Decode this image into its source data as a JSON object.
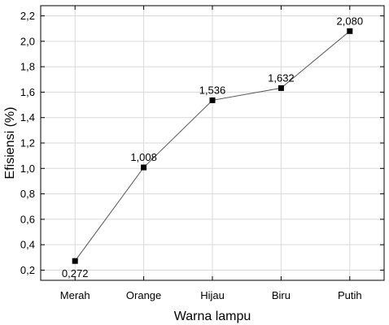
{
  "chart_data": {
    "type": "line",
    "categories": [
      "Merah",
      "Orange",
      "Hijau",
      "Biru",
      "Putih"
    ],
    "values": [
      0.272,
      1.008,
      1.536,
      1.632,
      2.08
    ],
    "data_labels": [
      "0,272",
      "1,008",
      "1,536",
      "1,632",
      "2,080"
    ],
    "xlabel": "Warna lampu",
    "ylabel": "Efisiensi (%)",
    "ylim": [
      0.12,
      2.28
    ],
    "yticks": [
      0.2,
      0.4,
      0.6,
      0.8,
      1.0,
      1.2,
      1.4,
      1.6,
      1.8,
      2.0,
      2.2
    ],
    "ytick_labels": [
      "0,2",
      "0,4",
      "0,6",
      "0,8",
      "1,0",
      "1,2",
      "1,4",
      "1,6",
      "1,8",
      "2,0",
      "2,2"
    ],
    "grid": true,
    "line_color": "#555555",
    "marker_color": "#000000",
    "grid_color": "#d9d9d9"
  }
}
